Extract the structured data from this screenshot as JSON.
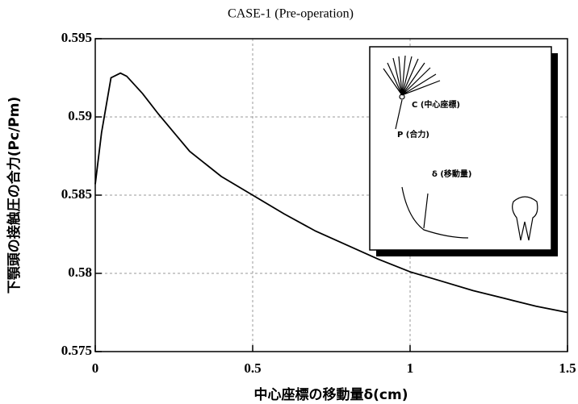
{
  "chart_data": {
    "type": "line",
    "title": "CASE-1 (Pre-operation)",
    "x_label": "中心座標の移動量δ(cm)",
    "y_label": "下顎頭の接触圧の合力(Pc/Pm)",
    "x": [
      0,
      0.02,
      0.05,
      0.08,
      0.1,
      0.15,
      0.2,
      0.25,
      0.3,
      0.4,
      0.5,
      0.6,
      0.7,
      0.8,
      0.9,
      1.0,
      1.1,
      1.2,
      1.3,
      1.4,
      1.5
    ],
    "series": [
      {
        "color": "#000000",
        "values": [
          0.5857,
          0.589,
          0.5925,
          0.5928,
          0.5926,
          0.5915,
          0.5902,
          0.589,
          0.5878,
          0.5862,
          0.585,
          0.5838,
          0.5827,
          0.5818,
          0.5809,
          0.5801,
          0.5795,
          0.5789,
          0.5784,
          0.5779,
          0.5775
        ]
      }
    ],
    "xlim": [
      0,
      1.5
    ],
    "ylim": [
      0.575,
      0.595
    ],
    "xticks": [
      0,
      0.5,
      1,
      1.5
    ],
    "yticks": [
      0.575,
      0.58,
      0.585,
      0.59,
      0.595
    ],
    "grid": true,
    "annotations": [
      "C (中心座標)",
      "P (合力)",
      "δ (移動量)"
    ]
  }
}
